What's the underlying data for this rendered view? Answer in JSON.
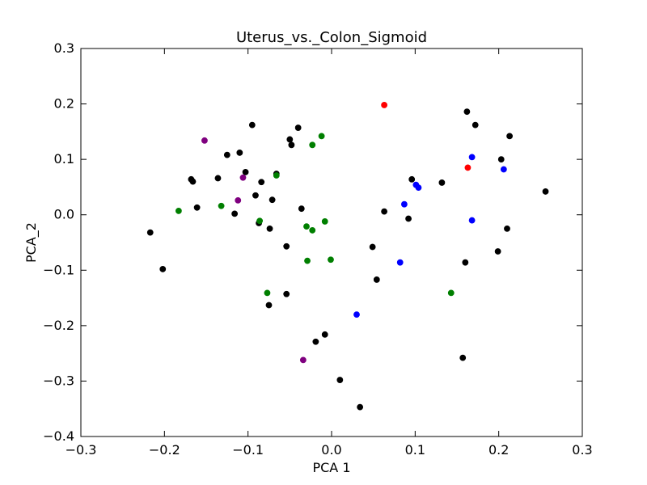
{
  "chart_data": {
    "type": "scatter",
    "title": "Uterus_vs._Colon_Sigmoid",
    "xlabel": "PCA 1",
    "ylabel": "PCA_2",
    "xlim": [
      -0.3,
      0.3
    ],
    "ylim": [
      -0.4,
      0.3
    ],
    "x_ticks": [
      -0.3,
      -0.2,
      -0.1,
      0.0,
      0.1,
      0.2,
      0.3
    ],
    "y_ticks": [
      -0.4,
      -0.3,
      -0.2,
      -0.1,
      0.0,
      0.1,
      0.2,
      0.3
    ],
    "x_tick_labels": [
      "−0.3",
      "−0.2",
      "−0.1",
      "0.0",
      "0.1",
      "0.2",
      "0.3"
    ],
    "y_tick_labels": [
      "−0.4",
      "−0.3",
      "−0.2",
      "−0.1",
      "0.0",
      "0.1",
      "0.2",
      "0.3"
    ],
    "grid": false,
    "legend": "none",
    "series": [
      {
        "color": "#000000",
        "points": [
          [
            -0.217,
            -0.032
          ],
          [
            -0.202,
            -0.098
          ],
          [
            -0.168,
            0.064
          ],
          [
            -0.166,
            0.06
          ],
          [
            -0.161,
            0.013
          ],
          [
            -0.136,
            0.066
          ],
          [
            -0.125,
            0.108
          ],
          [
            -0.116,
            0.002
          ],
          [
            -0.11,
            0.112
          ],
          [
            -0.103,
            0.077
          ],
          [
            -0.095,
            0.162
          ],
          [
            -0.091,
            0.035
          ],
          [
            -0.087,
            -0.015
          ],
          [
            -0.084,
            0.059
          ],
          [
            -0.075,
            -0.163
          ],
          [
            -0.074,
            -0.025
          ],
          [
            -0.071,
            0.027
          ],
          [
            -0.066,
            0.074
          ],
          [
            -0.054,
            -0.057
          ],
          [
            -0.054,
            -0.143
          ],
          [
            -0.05,
            0.136
          ],
          [
            -0.048,
            0.126
          ],
          [
            -0.04,
            0.157
          ],
          [
            -0.036,
            0.011
          ],
          [
            -0.019,
            -0.229
          ],
          [
            -0.008,
            -0.216
          ],
          [
            0.01,
            -0.298
          ],
          [
            0.034,
            -0.347
          ],
          [
            0.049,
            -0.058
          ],
          [
            0.054,
            -0.117
          ],
          [
            0.063,
            0.006
          ],
          [
            0.092,
            -0.007
          ],
          [
            0.096,
            0.064
          ],
          [
            0.132,
            0.058
          ],
          [
            0.157,
            -0.258
          ],
          [
            0.16,
            -0.086
          ],
          [
            0.162,
            0.186
          ],
          [
            0.172,
            0.162
          ],
          [
            0.199,
            -0.066
          ],
          [
            0.203,
            0.1
          ],
          [
            0.21,
            -0.025
          ],
          [
            0.213,
            0.142
          ],
          [
            0.256,
            0.042
          ]
        ]
      },
      {
        "color": "#007f00",
        "points": [
          [
            -0.183,
            0.007
          ],
          [
            -0.132,
            0.016
          ],
          [
            -0.086,
            -0.011
          ],
          [
            -0.077,
            -0.141
          ],
          [
            -0.066,
            0.071
          ],
          [
            -0.03,
            -0.021
          ],
          [
            -0.029,
            -0.083
          ],
          [
            -0.023,
            -0.028
          ],
          [
            -0.023,
            0.126
          ],
          [
            -0.012,
            0.142
          ],
          [
            -0.008,
            -0.012
          ],
          [
            -0.001,
            -0.081
          ],
          [
            0.143,
            -0.141
          ]
        ]
      },
      {
        "color": "#7f007f",
        "points": [
          [
            -0.152,
            0.134
          ],
          [
            -0.112,
            0.026
          ],
          [
            -0.106,
            0.067
          ],
          [
            -0.034,
            -0.262
          ]
        ]
      },
      {
        "color": "#0000ff",
        "points": [
          [
            0.03,
            -0.18
          ],
          [
            0.082,
            -0.086
          ],
          [
            0.087,
            0.019
          ],
          [
            0.101,
            0.054
          ],
          [
            0.104,
            0.049
          ],
          [
            0.168,
            0.104
          ],
          [
            0.168,
            -0.01
          ],
          [
            0.206,
            0.082
          ]
        ]
      },
      {
        "color": "#ff0000",
        "points": [
          [
            0.063,
            0.198
          ],
          [
            0.163,
            0.085
          ]
        ]
      }
    ]
  }
}
